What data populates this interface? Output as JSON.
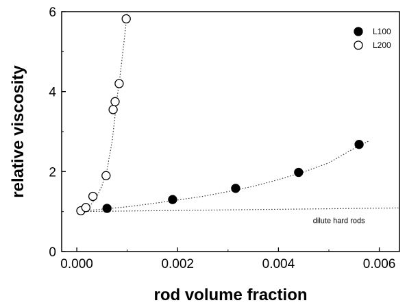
{
  "chart_data": {
    "type": "scatter",
    "title": "",
    "xlabel": "rod volume fraction",
    "ylabel": "relative viscosity",
    "xlim": [
      -0.0003,
      0.0064
    ],
    "ylim": [
      0,
      6
    ],
    "xticks": [
      0.0,
      0.002,
      0.004,
      0.006
    ],
    "xtick_labels": [
      "0.000",
      "0.002",
      "0.004",
      "0.006"
    ],
    "yticks": [
      0,
      2,
      4,
      6
    ],
    "ytick_labels": [
      "0",
      "2",
      "4",
      "6"
    ],
    "grid": false,
    "legend_position": "top-right",
    "series": [
      {
        "name": "L100",
        "marker": "filled-circle",
        "color": "#000000",
        "x": [
          0.0006,
          0.0019,
          0.00315,
          0.0044,
          0.0056
        ],
        "y": [
          1.08,
          1.3,
          1.58,
          1.98,
          2.68
        ]
      },
      {
        "name": "L200",
        "marker": "open-circle",
        "color": "#000000",
        "x": [
          8e-05,
          0.00018,
          0.00032,
          0.00058,
          0.00072,
          0.00076,
          0.00084,
          0.00098
        ],
        "y": [
          1.02,
          1.1,
          1.38,
          1.9,
          3.55,
          3.75,
          4.2,
          5.82
        ]
      }
    ],
    "fit_curves": [
      {
        "series": "L100",
        "x": [
          0.0,
          0.0005,
          0.001,
          0.0015,
          0.002,
          0.0025,
          0.003,
          0.0035,
          0.004,
          0.0045,
          0.005,
          0.0055,
          0.0058
        ],
        "y": [
          1.0,
          1.06,
          1.12,
          1.2,
          1.29,
          1.38,
          1.5,
          1.63,
          1.8,
          1.99,
          2.22,
          2.58,
          2.77
        ]
      },
      {
        "series": "L200",
        "x": [
          0.0,
          0.0001,
          0.0002,
          0.0003,
          0.0004,
          0.0005,
          0.0006,
          0.0007,
          0.00075,
          0.0008,
          0.00085,
          0.0009,
          0.00095,
          0.001
        ],
        "y": [
          1.0,
          1.03,
          1.08,
          1.2,
          1.38,
          1.65,
          2.05,
          2.75,
          3.3,
          3.85,
          4.3,
          4.85,
          5.4,
          6.0
        ]
      },
      {
        "series": "dilute hard rods",
        "x": [
          0.0,
          0.0064
        ],
        "y": [
          1.0,
          1.09
        ]
      }
    ],
    "annotations": [
      {
        "text": "dilute hard rods",
        "x": 0.0052,
        "y": 0.92
      }
    ]
  }
}
